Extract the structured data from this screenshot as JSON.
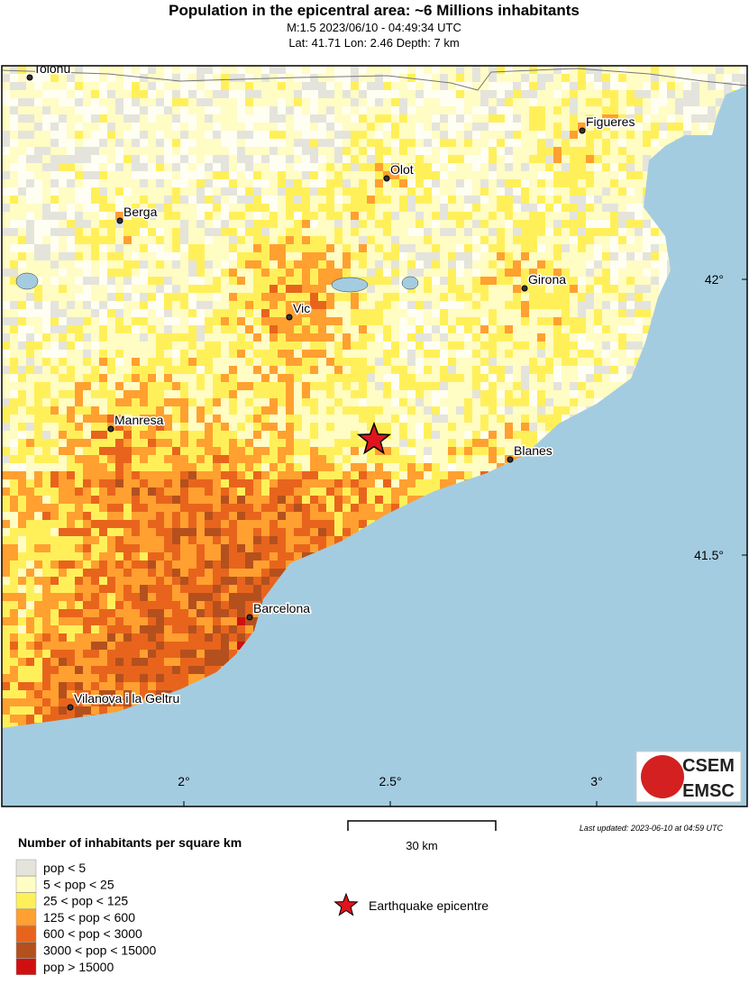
{
  "header": {
    "title": "Population in the epicentral area: ~6 Millions inhabitants",
    "subtitle_1": "M:1.5 2023/06/10 - 04:49:34 UTC",
    "subtitle_2": "Lat: 41.71 Lon: 2.46 Depth: 7 km"
  },
  "map": {
    "xticks": [
      {
        "value": 2,
        "label": "2°"
      },
      {
        "value": 2.5,
        "label": "2.5°"
      },
      {
        "value": 3,
        "label": "3°"
      }
    ],
    "yticks": [
      {
        "value": 42,
        "label": "42°"
      },
      {
        "value": 41.5,
        "label": "41.5°"
      }
    ],
    "cities": [
      "Tolonu",
      "Figueres",
      "Olot",
      "Berga",
      "Girona",
      "Vic",
      "Manresa",
      "Blanes",
      "Barcelona",
      "Vilanova i la Geltru"
    ]
  },
  "scale_bar": "30 km",
  "last_updated": "Last updated: 2023-06-10 at 04:59 UTC",
  "legend": {
    "title": "Number of inhabitants per square km",
    "items": [
      {
        "label": "pop < 5",
        "color": "#e4e4dc"
      },
      {
        "label": "5 < pop < 25",
        "color": "#fffcc4"
      },
      {
        "label": "25 < pop < 125",
        "color": "#fff05a"
      },
      {
        "label": "125 < pop < 600",
        "color": "#ffa030"
      },
      {
        "label": "600 < pop < 3000",
        "color": "#e8641c"
      },
      {
        "label": "3000 < pop < 15000",
        "color": "#b4501e"
      },
      {
        "label": "pop > 15000",
        "color": "#d01010"
      }
    ]
  },
  "epicentre_label": "Earthquake epicentre",
  "logo": {
    "top": "CSEM",
    "bottom": "EMSC"
  }
}
